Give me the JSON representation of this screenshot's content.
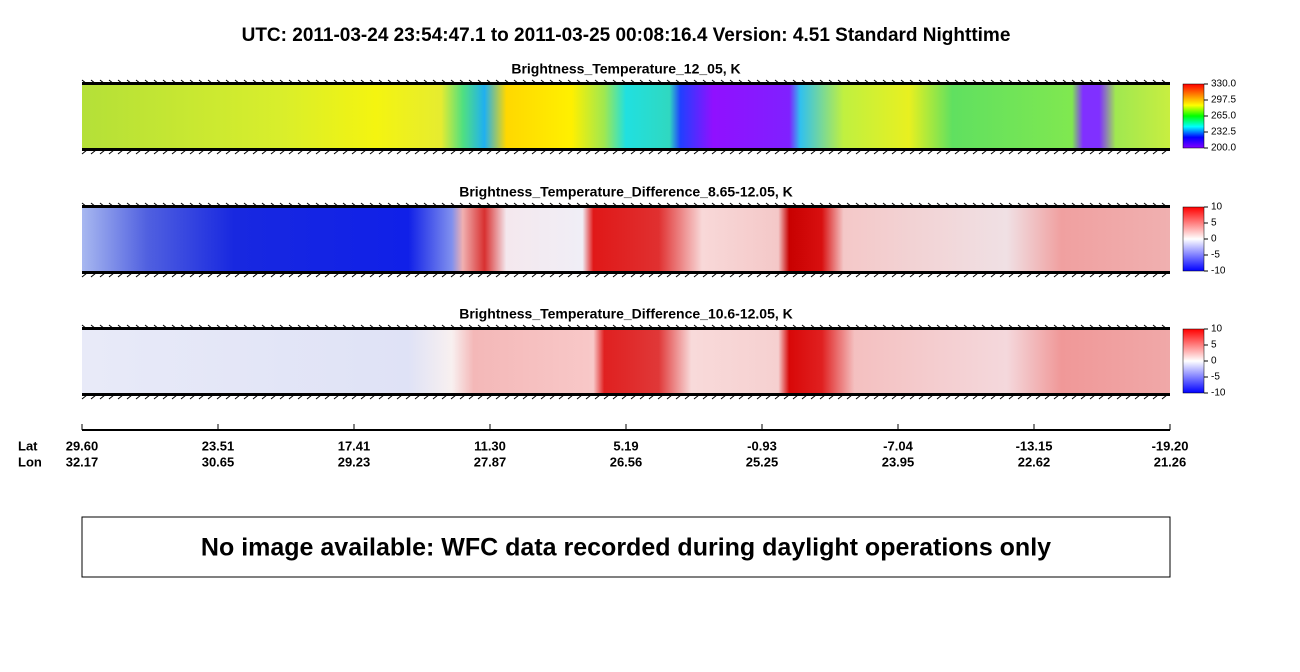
{
  "header": {
    "title": "UTC:  2011-03-24   23:54:47.1  to  2011-03-25   00:08:16.4    Version: 4.51  Standard Nighttime"
  },
  "chart_data": [
    {
      "type": "heatmap",
      "title": "Brightness_Temperature_12_05, K",
      "colors": [
        "#8000ff",
        "#0000ff",
        "#00ffff",
        "#00ff00",
        "#ffff00",
        "#ff8000",
        "#ff0000"
      ],
      "vlim": [
        200,
        330
      ],
      "vticks": [
        {
          "value": 330,
          "label": "330.0"
        },
        {
          "value": 297.5,
          "label": "297.5"
        },
        {
          "value": 265,
          "label": "265.0"
        },
        {
          "value": 232.5,
          "label": "232.5"
        },
        {
          "value": 200,
          "label": "200.0"
        }
      ]
    },
    {
      "type": "heatmap",
      "title": "Brightness_Temperature_Difference_8.65-12.05, K",
      "colors": [
        "#0000ff",
        "#ffffff",
        "#ff0000"
      ],
      "vlim": [
        -10,
        10
      ],
      "vticks": [
        10,
        5,
        0,
        -5,
        -10
      ]
    },
    {
      "type": "heatmap",
      "title": "Brightness_Temperature_Difference_10.6-12.05, K",
      "colors": [
        "#0000ff",
        "#ffffff",
        "#ff0000"
      ],
      "vlim": [
        -10,
        10
      ],
      "vticks": [
        10,
        5,
        0,
        -5,
        -10
      ]
    }
  ],
  "axis": {
    "lat_label": "Lat",
    "lon_label": "Lon",
    "lat": [
      "29.60",
      "23.51",
      "17.41",
      "11.30",
      "5.19",
      "-0.93",
      "-7.04",
      "-13.15",
      "-19.20"
    ],
    "lon": [
      "32.17",
      "30.65",
      "29.23",
      "27.87",
      "26.56",
      "25.25",
      "23.95",
      "22.62",
      "21.26"
    ]
  },
  "message": "No image available: WFC data recorded during daylight operations only"
}
